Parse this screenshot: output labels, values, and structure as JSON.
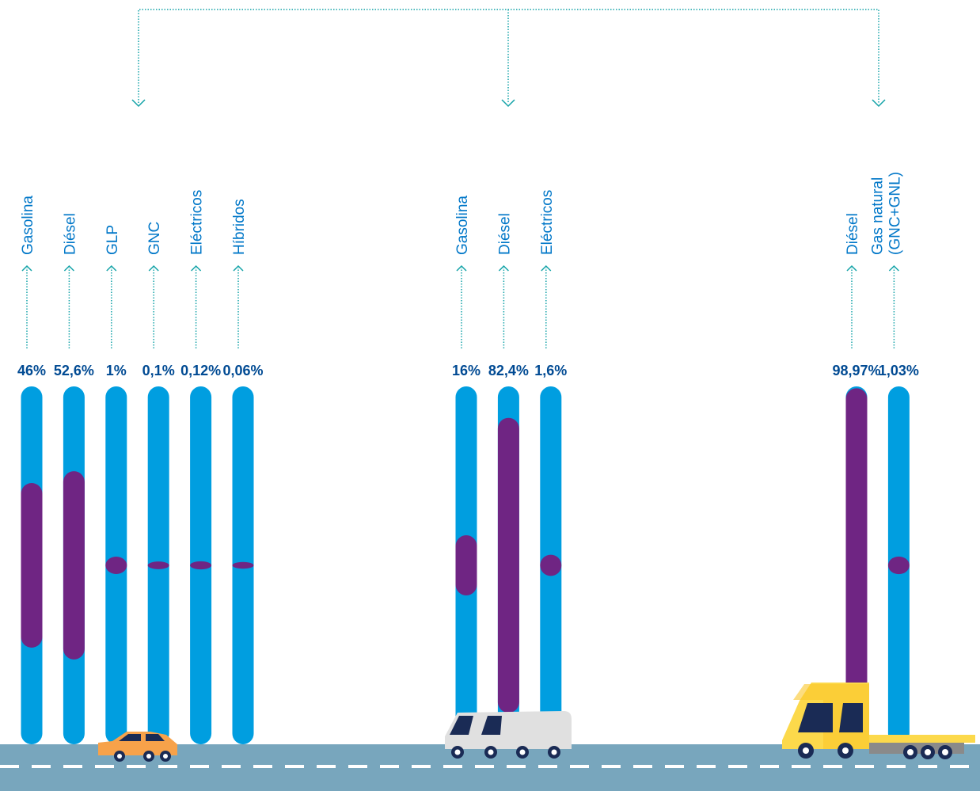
{
  "chart_data": [
    {
      "type": "bar",
      "categories": [
        [
          "Gasolina"
        ],
        [
          "Diésel"
        ],
        [
          "GLP"
        ],
        [
          "GNC"
        ],
        [
          "Eléctricos"
        ],
        [
          "Híbridos"
        ]
      ],
      "values": [
        46,
        52.6,
        1,
        0.1,
        0.12,
        0.06
      ],
      "value_labels": [
        "46%",
        "52,6%",
        "1%",
        "0,1%",
        "0,12%",
        "0,06%"
      ],
      "color": "#6f2583",
      "track_color": "#009ee0",
      "ylim": [
        0,
        100
      ]
    },
    {
      "type": "bar",
      "categories": [
        [
          "Gasolina"
        ],
        [
          "Diésel"
        ],
        [
          "Eléctricos"
        ]
      ],
      "values": [
        16,
        82.4,
        1.6
      ],
      "value_labels": [
        "16%",
        "82,4%",
        "1,6%"
      ],
      "color": "#6f2583",
      "track_color": "#009ee0",
      "ylim": [
        0,
        100
      ]
    },
    {
      "type": "bar",
      "categories": [
        [
          "Diésel"
        ],
        [
          "Gas natural",
          "(GNC+GNL)"
        ]
      ],
      "values": [
        98.97,
        1.03
      ],
      "value_labels": [
        "98,97%",
        "1,03%"
      ],
      "color": "#6f2583",
      "track_color": "#009ee0",
      "ylim": [
        0,
        100
      ]
    }
  ]
}
